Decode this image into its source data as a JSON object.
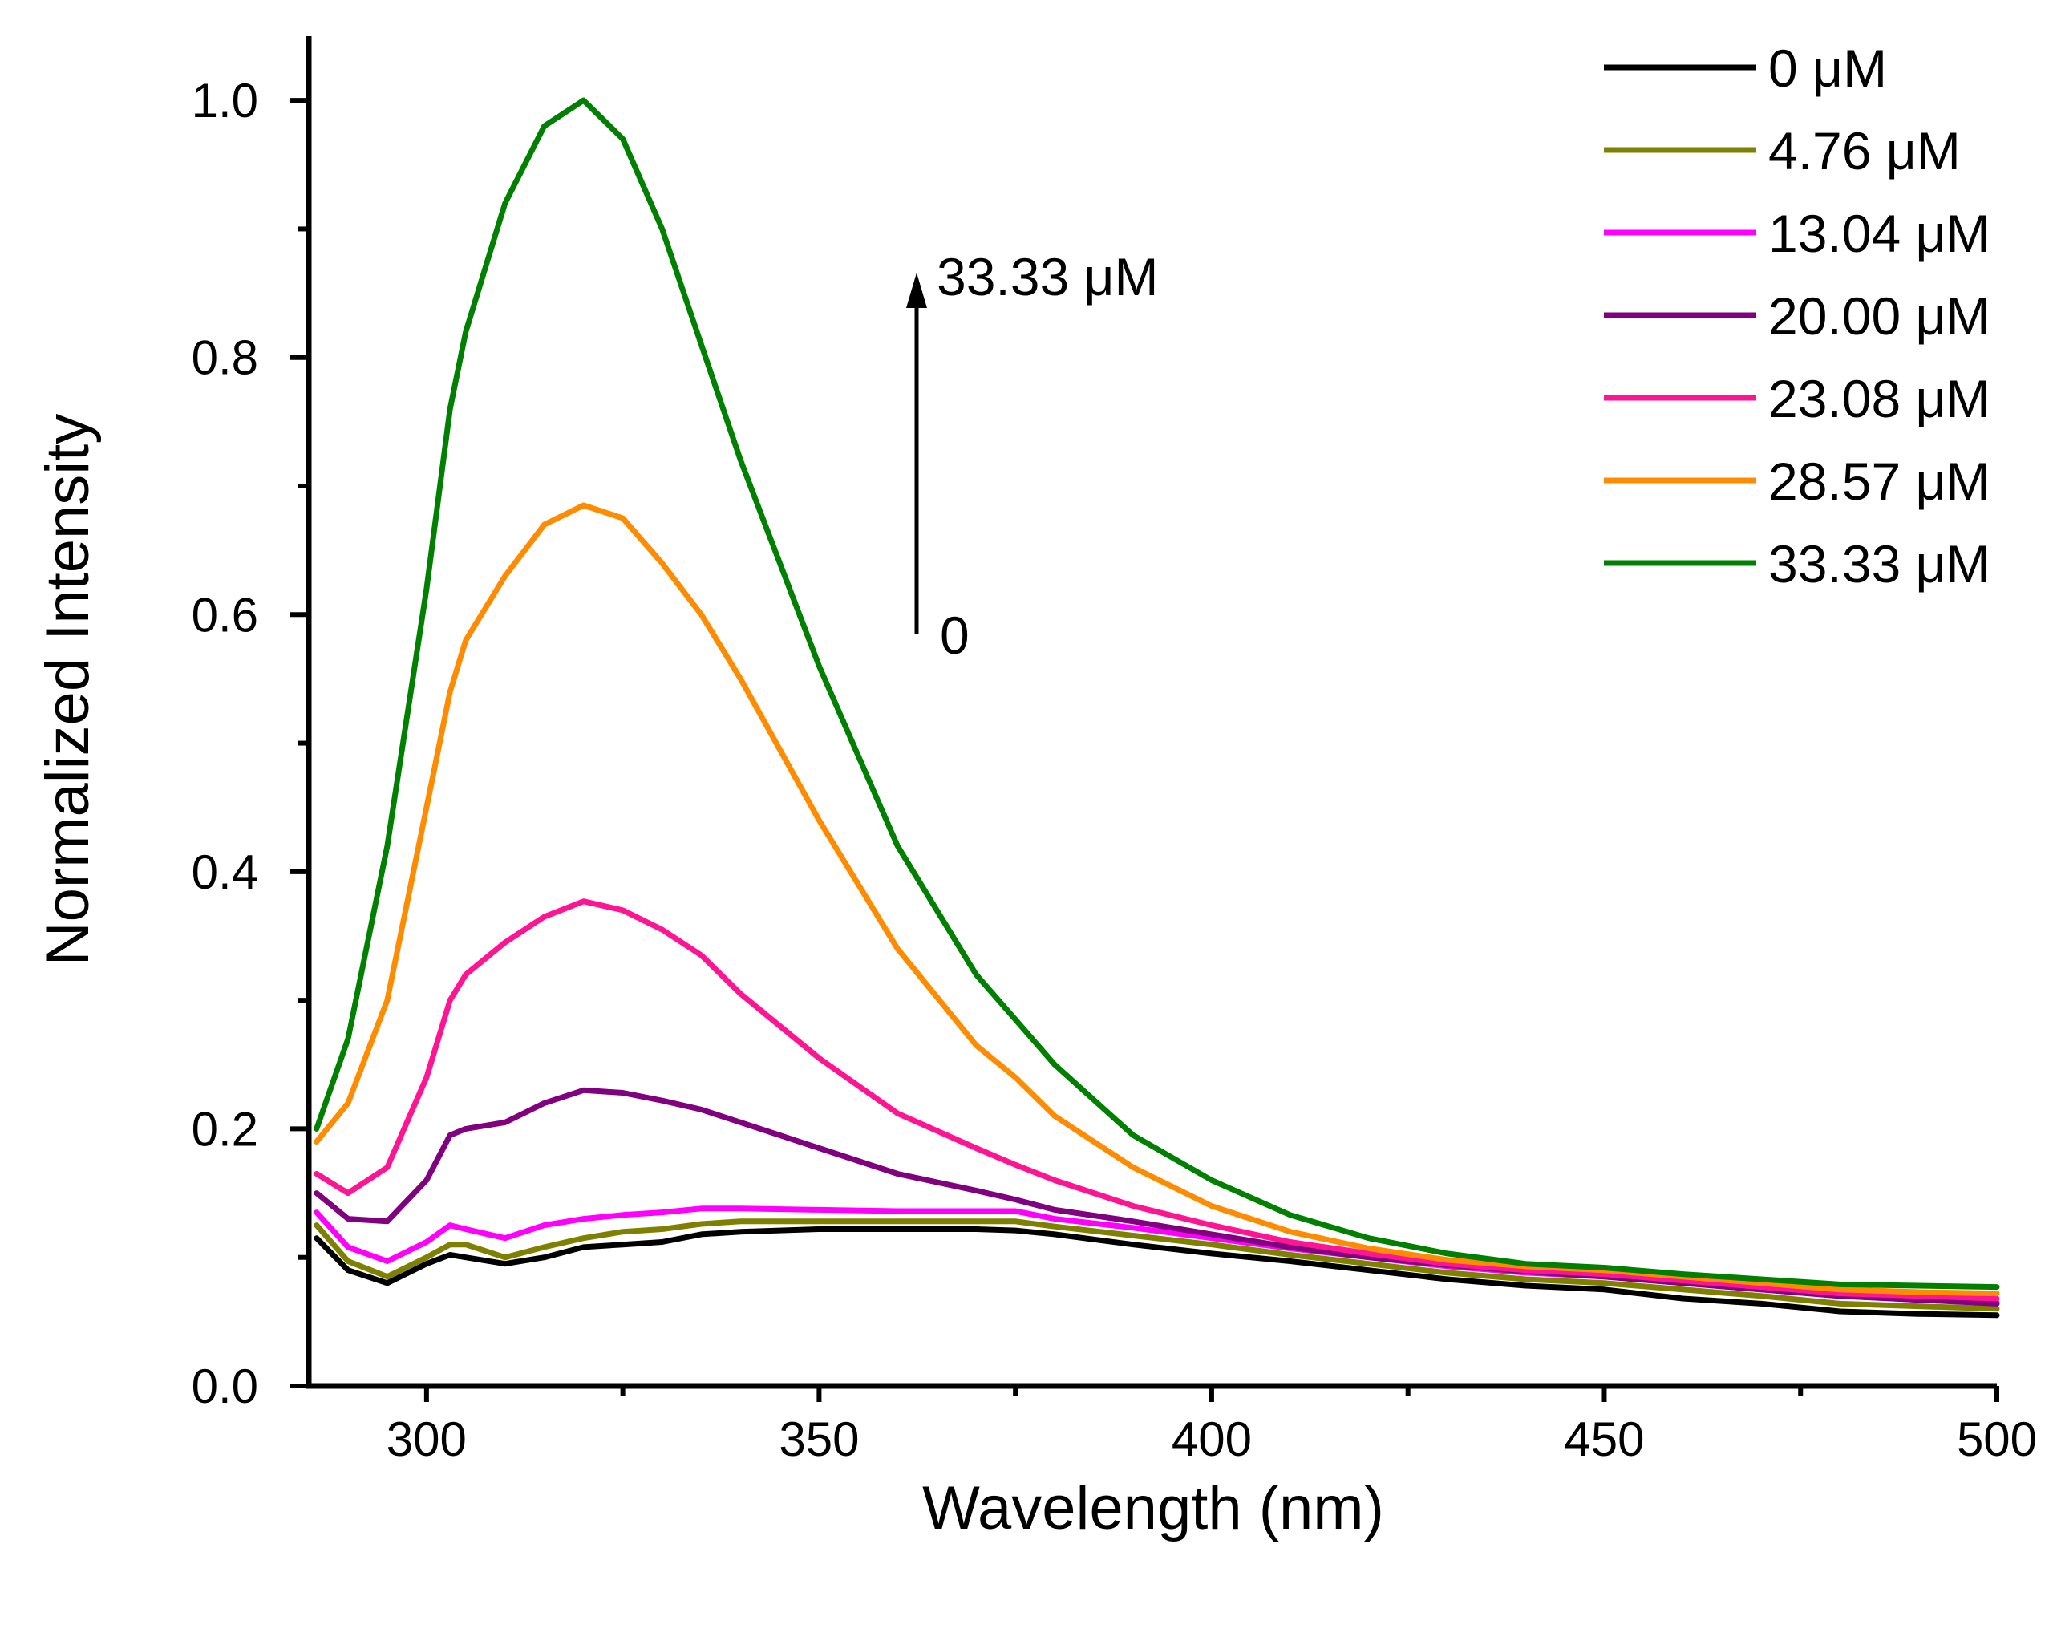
{
  "chart_data": {
    "type": "line",
    "title": "",
    "xlabel": "Wavelength (nm)",
    "ylabel": "Normalized Intensity",
    "xlim": [
      285,
      500
    ],
    "ylim": [
      0,
      1.05
    ],
    "x_ticks": [
      {
        "value": 300,
        "label": "300"
      },
      {
        "value": 350,
        "label": "350"
      },
      {
        "value": 400,
        "label": "400"
      },
      {
        "value": 450,
        "label": "450"
      },
      {
        "value": 500,
        "label": "500"
      }
    ],
    "y_ticks": [
      {
        "value": 0.0,
        "label": "0.0"
      },
      {
        "value": 0.2,
        "label": "0.2"
      },
      {
        "value": 0.4,
        "label": "0.4"
      },
      {
        "value": 0.6,
        "label": "0.6"
      },
      {
        "value": 0.8,
        "label": "0.8"
      },
      {
        "value": 1.0,
        "label": "1.0"
      }
    ],
    "grid": false,
    "legend_position": "top-right",
    "x": [
      286,
      290,
      295,
      300,
      303,
      305,
      310,
      315,
      320,
      325,
      330,
      335,
      340,
      350,
      360,
      370,
      375,
      380,
      390,
      400,
      410,
      420,
      430,
      440,
      450,
      460,
      470,
      480,
      490,
      500
    ],
    "series": [
      {
        "name": "0 μM",
        "color": "#000000",
        "values": [
          0.115,
          0.09,
          0.08,
          0.095,
          0.102,
          0.1,
          0.095,
          0.1,
          0.108,
          0.11,
          0.112,
          0.118,
          0.12,
          0.122,
          0.122,
          0.122,
          0.121,
          0.118,
          0.11,
          0.103,
          0.097,
          0.09,
          0.083,
          0.078,
          0.075,
          0.068,
          0.064,
          0.058,
          0.056,
          0.055
        ]
      },
      {
        "name": "4.76 μM",
        "color": "#808000",
        "values": [
          0.125,
          0.097,
          0.085,
          0.1,
          0.11,
          0.11,
          0.1,
          0.108,
          0.115,
          0.12,
          0.122,
          0.126,
          0.128,
          0.128,
          0.128,
          0.128,
          0.128,
          0.124,
          0.117,
          0.11,
          0.102,
          0.095,
          0.088,
          0.083,
          0.08,
          0.075,
          0.07,
          0.064,
          0.062,
          0.06
        ]
      },
      {
        "name": "13.04 μM",
        "color": "#ff00ff",
        "values": [
          0.135,
          0.108,
          0.097,
          0.112,
          0.125,
          0.122,
          0.115,
          0.125,
          0.13,
          0.133,
          0.135,
          0.138,
          0.138,
          0.137,
          0.136,
          0.136,
          0.136,
          0.13,
          0.123,
          0.115,
          0.107,
          0.1,
          0.093,
          0.088,
          0.085,
          0.08,
          0.075,
          0.07,
          0.067,
          0.065
        ]
      },
      {
        "name": "20.00 μM",
        "color": "#800080",
        "values": [
          0.15,
          0.13,
          0.128,
          0.16,
          0.195,
          0.2,
          0.205,
          0.22,
          0.23,
          0.228,
          0.222,
          0.215,
          0.205,
          0.185,
          0.165,
          0.152,
          0.145,
          0.137,
          0.128,
          0.118,
          0.108,
          0.1,
          0.094,
          0.089,
          0.085,
          0.08,
          0.075,
          0.07,
          0.067,
          0.064
        ]
      },
      {
        "name": "23.08 μM",
        "color": "#ff1493",
        "values": [
          0.165,
          0.15,
          0.17,
          0.24,
          0.3,
          0.32,
          0.345,
          0.365,
          0.377,
          0.37,
          0.355,
          0.335,
          0.305,
          0.255,
          0.212,
          0.185,
          0.172,
          0.16,
          0.14,
          0.125,
          0.112,
          0.103,
          0.095,
          0.09,
          0.087,
          0.082,
          0.077,
          0.072,
          0.07,
          0.068
        ]
      },
      {
        "name": "28.57 μM",
        "color": "#ff8c00",
        "values": [
          0.19,
          0.22,
          0.3,
          0.45,
          0.54,
          0.58,
          0.63,
          0.67,
          0.685,
          0.675,
          0.64,
          0.6,
          0.55,
          0.44,
          0.34,
          0.265,
          0.24,
          0.21,
          0.17,
          0.14,
          0.12,
          0.107,
          0.098,
          0.093,
          0.09,
          0.085,
          0.08,
          0.075,
          0.073,
          0.072
        ]
      },
      {
        "name": "33.33 μM",
        "color": "#008000",
        "values": [
          0.2,
          0.27,
          0.42,
          0.62,
          0.76,
          0.82,
          0.92,
          0.98,
          1.0,
          0.97,
          0.9,
          0.81,
          0.72,
          0.56,
          0.42,
          0.32,
          0.285,
          0.25,
          0.195,
          0.16,
          0.133,
          0.115,
          0.103,
          0.095,
          0.092,
          0.087,
          0.083,
          0.079,
          0.078,
          0.077
        ]
      }
    ],
    "annotation": {
      "arrow_from_label": "0",
      "arrow_to_label": "33.33 μM"
    }
  }
}
